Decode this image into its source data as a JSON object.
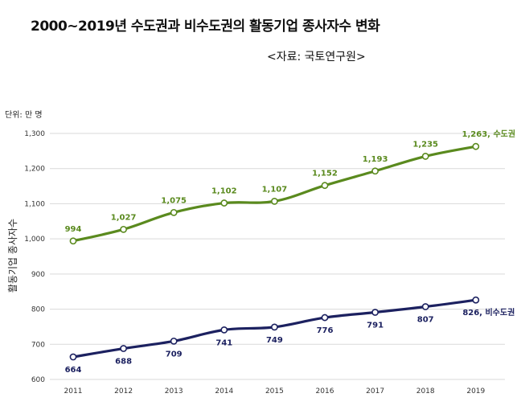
{
  "title": "2000~2019년 수도권과 비수도권의 활동기업 종사자수 변화",
  "source": "<자료: 국토연구원>",
  "unit": "단위: 만 명",
  "chart_data": {
    "type": "line",
    "title": "2000~2019년 수도권과 비수도권의 활동기업 종사자수 변화",
    "xlabel": "",
    "ylabel": "활동기업 종사자수",
    "categories": [
      "2011",
      "2012",
      "2013",
      "2014",
      "2015",
      "2016",
      "2017",
      "2018",
      "2019"
    ],
    "ylim": [
      600,
      1300
    ],
    "yticks": [
      600,
      700,
      800,
      900,
      1000,
      1100,
      1200,
      1300
    ],
    "ytick_labels": [
      "600",
      "700",
      "800",
      "900",
      "1,000",
      "1,100",
      "1,200",
      "1,300"
    ],
    "grid": true,
    "series": [
      {
        "name": "수도권",
        "color": "#5a8a1e",
        "values": [
          994,
          1027,
          1075,
          1102,
          1107,
          1152,
          1193,
          1235,
          1263
        ],
        "labels": [
          "994",
          "1,027",
          "1,075",
          "1,102",
          "1,107",
          "1,152",
          "1,193",
          "1,235",
          "1,263, 수도권"
        ],
        "label_pos": "above"
      },
      {
        "name": "비수도권",
        "color": "#1c2160",
        "values": [
          664,
          688,
          709,
          741,
          749,
          776,
          791,
          807,
          826
        ],
        "labels": [
          "664",
          "688",
          "709",
          "741",
          "749",
          "776",
          "791",
          "807",
          "826, 비수도권"
        ],
        "label_pos": "below"
      }
    ]
  }
}
